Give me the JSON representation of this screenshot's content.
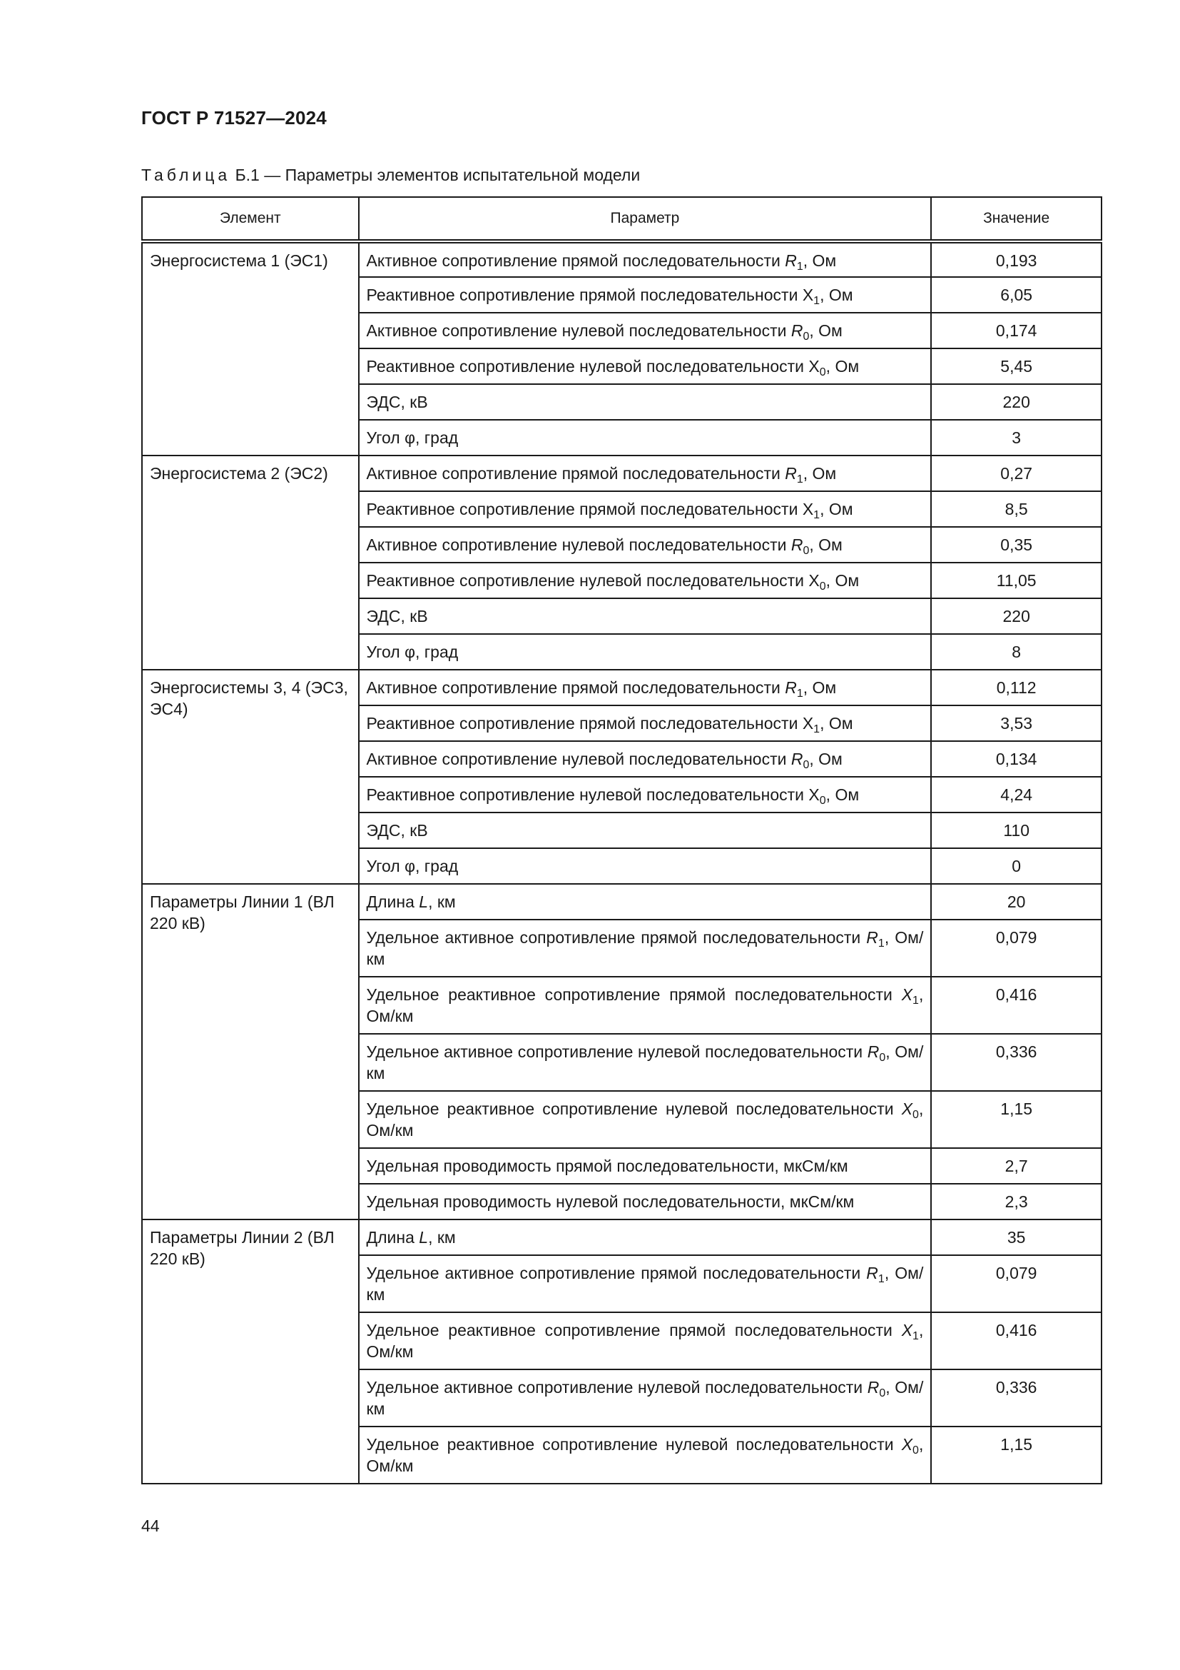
{
  "header": {
    "doc_code": "ГОСТ Р 71527—2024"
  },
  "caption": {
    "label": "Таблица",
    "text": " Б.1 — Параметры элементов испытательной модели"
  },
  "table": {
    "columns": [
      "Элемент",
      "Параметр",
      "Значение"
    ],
    "groups": [
      {
        "element": "Энергосистема 1 (ЭС1)",
        "rows": [
          {
            "pre": "Активное сопротивление прямой последовательности ",
            "sym": "R",
            "sub": "1",
            "post": ", Ом",
            "italic": true,
            "value": "0,193"
          },
          {
            "pre": "Реактивное сопротивление прямой последовательности ",
            "sym": "X",
            "sub": "1",
            "post": ", Ом",
            "italic": false,
            "value": "6,05"
          },
          {
            "pre": "Активное сопротивление нулевой последовательности ",
            "sym": "R",
            "sub": "0",
            "post": ", Ом",
            "italic": true,
            "value": "0,174"
          },
          {
            "pre": "Реактивное сопротивление нулевой последовательности ",
            "sym": "X",
            "sub": "0",
            "post": ", Ом",
            "italic": false,
            "value": "5,45"
          },
          {
            "pre": "ЭДС, кВ",
            "value": "220"
          },
          {
            "pre": "Угол φ, град",
            "value": "3"
          }
        ]
      },
      {
        "element": "Энергосистема 2 (ЭС2)",
        "rows": [
          {
            "pre": "Активное сопротивление прямой последовательности ",
            "sym": "R",
            "sub": "1",
            "post": ", Ом",
            "italic": true,
            "value": "0,27"
          },
          {
            "pre": "Реактивное сопротивление прямой последовательности ",
            "sym": "X",
            "sub": "1",
            "post": ", Ом",
            "italic": false,
            "value": "8,5"
          },
          {
            "pre": "Активное сопротивление нулевой последовательности ",
            "sym": "R",
            "sub": "0",
            "post": ", Ом",
            "italic": true,
            "value": "0,35"
          },
          {
            "pre": "Реактивное сопротивление нулевой последовательности ",
            "sym": "X",
            "sub": "0",
            "post": ", Ом",
            "italic": false,
            "value": "11,05"
          },
          {
            "pre": "ЭДС, кВ",
            "value": "220"
          },
          {
            "pre": "Угол φ, град",
            "value": "8"
          }
        ]
      },
      {
        "element": "Энергосистемы 3, 4 (ЭС3, ЭС4)",
        "rows": [
          {
            "pre": "Активное сопротивление прямой последовательности ",
            "sym": "R",
            "sub": "1",
            "post": ", Ом",
            "italic": true,
            "value": "0,112"
          },
          {
            "pre": "Реактивное сопротивление прямой последовательности ",
            "sym": "X",
            "sub": "1",
            "post": ", Ом",
            "italic": false,
            "value": "3,53"
          },
          {
            "pre": "Активное сопротивление нулевой последовательности ",
            "sym": "R",
            "sub": "0",
            "post": ", Ом",
            "italic": true,
            "value": "0,134"
          },
          {
            "pre": "Реактивное сопротивление нулевой последовательности ",
            "sym": "X",
            "sub": "0",
            "post": ", Ом",
            "italic": false,
            "value": "4,24"
          },
          {
            "pre": "ЭДС, кВ",
            "value": "110"
          },
          {
            "pre": "Угол φ, град",
            "value": "0"
          }
        ]
      },
      {
        "element": "Параметры Линии 1 (ВЛ 220 кВ)",
        "rows": [
          {
            "pre": "Длина ",
            "sym": "L",
            "sub": "",
            "post": ", км",
            "italic": true,
            "value": "20"
          },
          {
            "pre": "Удельное активное сопротивление прямой последовательности ",
            "sym": "R",
            "sub": "1",
            "post": ", Ом/км",
            "italic": true,
            "value": "0,079",
            "double": true
          },
          {
            "pre": "Удельное реактивное сопротивление прямой последовательно­сти ",
            "sym": "X",
            "sub": "1",
            "post": ", Ом/км",
            "italic": true,
            "value": "0,416",
            "double": true
          },
          {
            "pre": "Удельное активное сопротивление нулевой последовательности ",
            "sym": "R",
            "sub": "0",
            "post": ", Ом/км",
            "italic": true,
            "value": "0,336",
            "double": true
          },
          {
            "pre": "Удельное реактивное сопротивление нулевой последовательно­сти ",
            "sym": "X",
            "sub": "0",
            "post": ", Ом/км",
            "italic": true,
            "value": "1,15",
            "double": true
          },
          {
            "pre": "Удельная проводимость прямой последовательности, мкСм/км",
            "value": "2,7"
          },
          {
            "pre": "Удельная проводимость нулевой последовательности, мкСм/км",
            "value": "2,3"
          }
        ]
      },
      {
        "element": "Параметры Линии 2 (ВЛ 220 кВ)",
        "rows": [
          {
            "pre": "Длина ",
            "sym": "L",
            "sub": "",
            "post": ", км",
            "italic": true,
            "value": "35"
          },
          {
            "pre": "Удельное активное сопротивление прямой последовательности ",
            "sym": "R",
            "sub": "1",
            "post": ", Ом/км",
            "italic": true,
            "value": "0,079",
            "double": true
          },
          {
            "pre": "Удельное реактивное сопротивление прямой последователь­ности ",
            "sym": "X",
            "sub": "1",
            "post": ", Ом/км",
            "italic": true,
            "value": "0,416",
            "double": true
          },
          {
            "pre": "Удельное активное сопротивление нулевой последовательности ",
            "sym": "R",
            "sub": "0",
            "post": ", Ом/км",
            "italic": true,
            "value": "0,336",
            "double": true
          },
          {
            "pre": "Удельное реактивное сопротивление нулевой последовательно­сти ",
            "sym": "X",
            "sub": "0",
            "post": ", Ом/км",
            "italic": true,
            "value": "1,15",
            "double": true
          }
        ]
      }
    ]
  },
  "footer": {
    "page_number": "44"
  }
}
